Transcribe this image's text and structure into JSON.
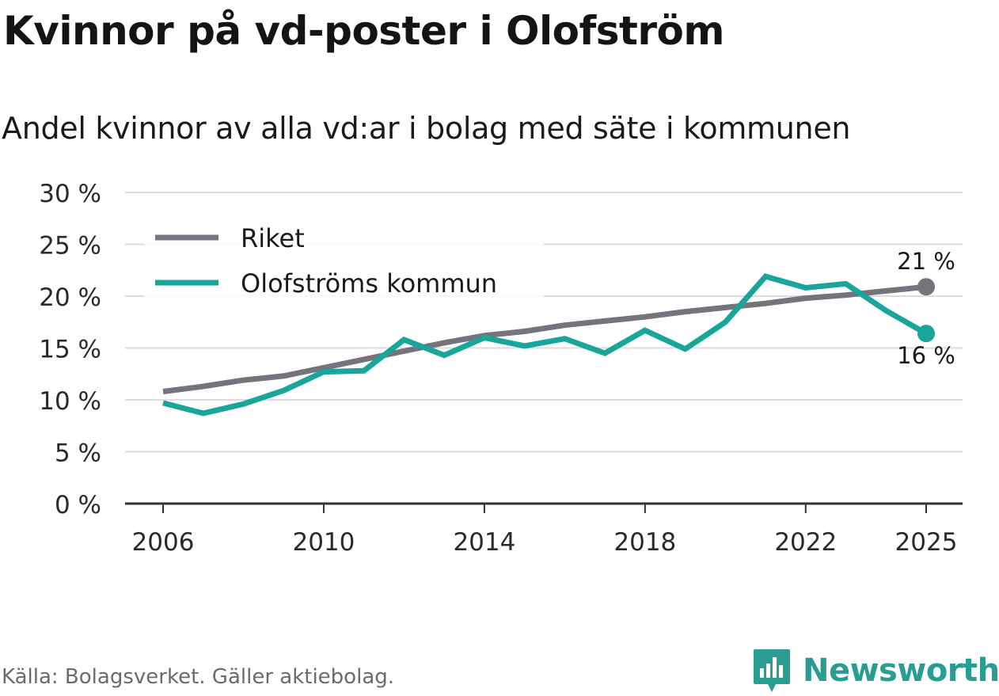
{
  "title": "Kvinnor på vd-poster i Olofström",
  "subtitle": "Andel kvinnor av alla vd:ar i bolag med säte i kommunen",
  "source": "Källa: Bolagsverket. Gäller aktiebolag.",
  "brand": "Newsworthy",
  "colors": {
    "riket": "#75737b",
    "kommun": "#1aa59b",
    "grid": "#dcdcdc",
    "axis": "#333333",
    "brand": "#2a9d93"
  },
  "chart_data": {
    "type": "line",
    "title": "Kvinnor på vd-poster i Olofström",
    "subtitle": "Andel kvinnor av alla vd:ar i bolag med säte i kommunen",
    "xlabel": "",
    "ylabel": "",
    "ylim": [
      0,
      30
    ],
    "xlim": [
      2006,
      2025
    ],
    "x_ticks": [
      "2006",
      "2010",
      "2014",
      "2018",
      "2022",
      "2025"
    ],
    "y_ticks": [
      "0 %",
      "5 %",
      "10 %",
      "15 %",
      "20 %",
      "25 %",
      "30 %"
    ],
    "legend_position": "top-left",
    "x": [
      2006,
      2007,
      2008,
      2009,
      2010,
      2011,
      2012,
      2013,
      2014,
      2015,
      2016,
      2017,
      2018,
      2019,
      2020,
      2021,
      2022,
      2023,
      2024,
      2025
    ],
    "series": [
      {
        "name": "Riket",
        "color_key": "riket",
        "end_label": "21 %",
        "values": [
          10.8,
          11.3,
          11.9,
          12.3,
          13.1,
          13.9,
          14.7,
          15.5,
          16.2,
          16.6,
          17.2,
          17.6,
          18.0,
          18.5,
          18.9,
          19.3,
          19.8,
          20.1,
          20.5,
          20.9
        ]
      },
      {
        "name": "Olofströms kommun",
        "color_key": "kommun",
        "end_label": "16 %",
        "values": [
          9.7,
          8.7,
          9.6,
          10.9,
          12.7,
          12.8,
          15.8,
          14.3,
          16.0,
          15.2,
          15.9,
          14.5,
          16.7,
          14.9,
          17.5,
          21.9,
          20.8,
          21.2,
          18.6,
          16.4
        ]
      }
    ]
  }
}
